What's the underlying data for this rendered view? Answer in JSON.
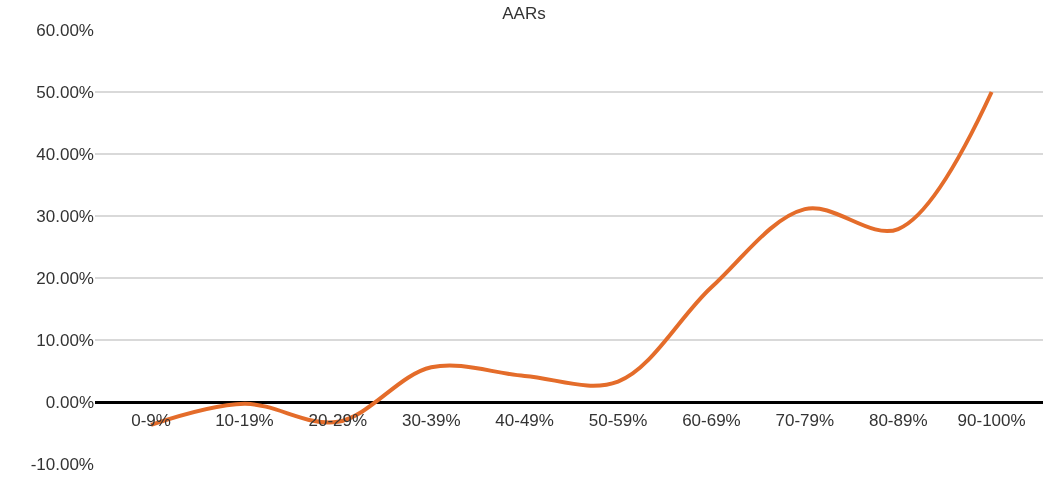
{
  "chart_data": {
    "type": "line",
    "title": "AARs",
    "categories": [
      "0-9%",
      "10-19%",
      "20-29%",
      "30-39%",
      "40-49%",
      "50-59%",
      "60-69%",
      "70-79%",
      "80-89%",
      "90-100%"
    ],
    "series": [
      {
        "color": "#e46c2a",
        "values": [
          -3.7,
          -0.3,
          -3.2,
          5.6,
          4.2,
          3.3,
          18.5,
          31.1,
          27.9,
          50.0
        ]
      }
    ],
    "ylim": [
      -10,
      60
    ],
    "yticks": [
      {
        "value": -10,
        "label": "-10.00%"
      },
      {
        "value": 0,
        "label": "0.00%"
      },
      {
        "value": 10,
        "label": "10.00%"
      },
      {
        "value": 20,
        "label": "20.00%"
      },
      {
        "value": 30,
        "label": "30.00%"
      },
      {
        "value": 40,
        "label": "40.00%"
      },
      {
        "value": 50,
        "label": "50.00%"
      },
      {
        "value": 60,
        "label": "60.00%"
      }
    ],
    "grid": "y",
    "marker": "none",
    "line_style": "solid"
  }
}
